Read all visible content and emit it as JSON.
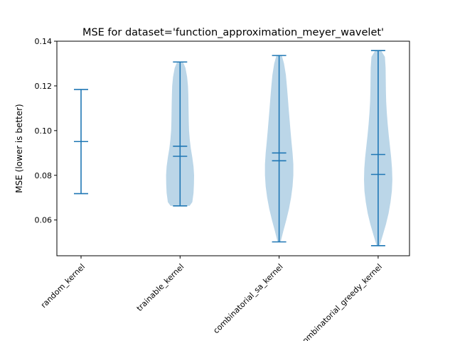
{
  "chart_data": {
    "type": "violin",
    "title": "MSE for dataset='function_approximation_meyer_wavelet'",
    "xlabel": "",
    "ylabel": "MSE (lower is better)",
    "ylim": [
      0.044,
      0.14
    ],
    "yticks": [
      0.06,
      0.08,
      0.1,
      0.12,
      0.14
    ],
    "ytick_labels": [
      "0.06",
      "0.08",
      "0.10",
      "0.12",
      "0.14"
    ],
    "categories": [
      "random_kernel",
      "trainable_kernel",
      "combinatorial_sa_kernel",
      "combinatorial_greedy_kernel"
    ],
    "grid": false,
    "colors": {
      "body": "#1f77b4",
      "body_alpha": 0.3,
      "lines": "#1f77b4"
    },
    "violins": [
      {
        "category": "random_kernel",
        "min": 0.0718,
        "max": 0.1184,
        "mean": 0.0951,
        "median": 0.0951,
        "density": []
      },
      {
        "category": "trainable_kernel",
        "min": 0.0663,
        "max": 0.1307,
        "mean": 0.093,
        "median": 0.0885,
        "density": [
          [
            0.0663,
            0.64
          ],
          [
            0.068,
            0.82
          ],
          [
            0.072,
            0.9
          ],
          [
            0.076,
            0.93
          ],
          [
            0.08,
            0.94
          ],
          [
            0.084,
            0.9
          ],
          [
            0.088,
            0.82
          ],
          [
            0.092,
            0.72
          ],
          [
            0.096,
            0.65
          ],
          [
            0.1,
            0.6
          ],
          [
            0.104,
            0.58
          ],
          [
            0.108,
            0.57
          ],
          [
            0.112,
            0.56
          ],
          [
            0.116,
            0.55
          ],
          [
            0.12,
            0.53
          ],
          [
            0.124,
            0.47
          ],
          [
            0.128,
            0.36
          ],
          [
            0.1307,
            0.2
          ]
        ]
      },
      {
        "category": "combinatorial_sa_kernel",
        "min": 0.0502,
        "max": 0.1336,
        "mean": 0.09,
        "median": 0.0865,
        "density": [
          [
            0.0502,
            0.1
          ],
          [
            0.055,
            0.28
          ],
          [
            0.06,
            0.48
          ],
          [
            0.065,
            0.66
          ],
          [
            0.07,
            0.8
          ],
          [
            0.075,
            0.9
          ],
          [
            0.08,
            0.95
          ],
          [
            0.085,
            0.95
          ],
          [
            0.09,
            0.9
          ],
          [
            0.095,
            0.83
          ],
          [
            0.1,
            0.76
          ],
          [
            0.105,
            0.7
          ],
          [
            0.11,
            0.64
          ],
          [
            0.115,
            0.58
          ],
          [
            0.12,
            0.52
          ],
          [
            0.125,
            0.45
          ],
          [
            0.13,
            0.33
          ],
          [
            0.1336,
            0.18
          ]
        ]
      },
      {
        "category": "combinatorial_greedy_kernel",
        "min": 0.0485,
        "max": 0.1358,
        "mean": 0.0893,
        "median": 0.0804,
        "density": [
          [
            0.0485,
            0.1
          ],
          [
            0.053,
            0.3
          ],
          [
            0.058,
            0.52
          ],
          [
            0.063,
            0.7
          ],
          [
            0.068,
            0.83
          ],
          [
            0.073,
            0.92
          ],
          [
            0.078,
            0.95
          ],
          [
            0.083,
            0.93
          ],
          [
            0.088,
            0.87
          ],
          [
            0.093,
            0.79
          ],
          [
            0.098,
            0.71
          ],
          [
            0.103,
            0.64
          ],
          [
            0.108,
            0.58
          ],
          [
            0.113,
            0.54
          ],
          [
            0.118,
            0.52
          ],
          [
            0.123,
            0.51
          ],
          [
            0.128,
            0.5
          ],
          [
            0.133,
            0.45
          ],
          [
            0.1358,
            0.2
          ]
        ]
      }
    ]
  }
}
